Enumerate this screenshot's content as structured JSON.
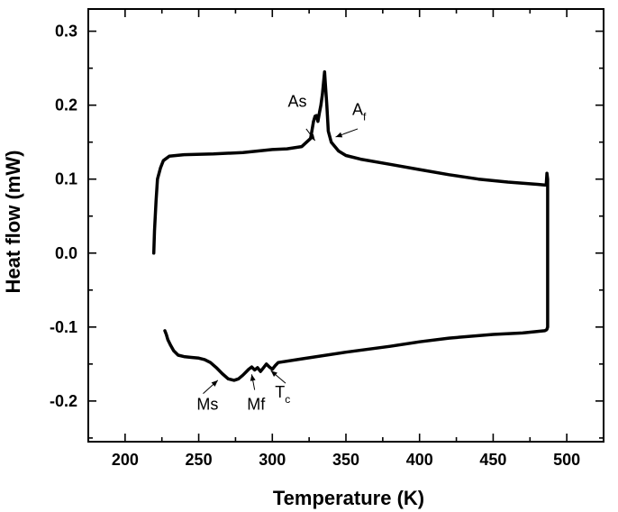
{
  "chart_data": {
    "type": "line",
    "title": "",
    "xlabel": "Temperature (K)",
    "ylabel": "Heat flow (mW)",
    "xlim": [
      175,
      525
    ],
    "ylim": [
      -0.255,
      0.33
    ],
    "x_ticks": [
      200,
      250,
      300,
      350,
      400,
      450,
      500
    ],
    "y_ticks": [
      -0.2,
      -0.1,
      0.0,
      0.1,
      0.2,
      0.3
    ],
    "y_tick_labels": [
      "-0.2",
      "-0.1",
      "0.0",
      "0.1",
      "0.2",
      "0.3"
    ],
    "grid": false,
    "series": [
      {
        "x": [
          219.5,
          220,
          221,
          222,
          224,
          226,
          230,
          240,
          260,
          280,
          300,
          310,
          320,
          326,
          328,
          329,
          330,
          331,
          332,
          333,
          334,
          335,
          335.5,
          336,
          337,
          338,
          340,
          345,
          350,
          360,
          380,
          400,
          420,
          440,
          460,
          480,
          485,
          486,
          486.5,
          487,
          487,
          487,
          486.5,
          486,
          485,
          470,
          450,
          420,
          400,
          380,
          350,
          320,
          304,
          302,
          300,
          298,
          296,
          294,
          292,
          290,
          288,
          286,
          284,
          282,
          280,
          277,
          274,
          270,
          266,
          262,
          258,
          254,
          250,
          245,
          240,
          236,
          233,
          231,
          229,
          228,
          227
        ],
        "y": [
          0.0,
          0.03,
          0.07,
          0.1,
          0.115,
          0.125,
          0.131,
          0.133,
          0.134,
          0.136,
          0.14,
          0.141,
          0.144,
          0.155,
          0.178,
          0.185,
          0.186,
          0.178,
          0.19,
          0.2,
          0.215,
          0.235,
          0.245,
          0.23,
          0.2,
          0.165,
          0.15,
          0.138,
          0.132,
          0.127,
          0.12,
          0.113,
          0.106,
          0.1,
          0.096,
          0.093,
          0.092,
          0.092,
          0.108,
          0.1,
          0.0,
          -0.1,
          -0.103,
          -0.104,
          -0.105,
          -0.108,
          -0.11,
          -0.115,
          -0.12,
          -0.126,
          -0.134,
          -0.143,
          -0.148,
          -0.152,
          -0.157,
          -0.154,
          -0.15,
          -0.155,
          -0.16,
          -0.155,
          -0.158,
          -0.154,
          -0.157,
          -0.161,
          -0.165,
          -0.17,
          -0.172,
          -0.17,
          -0.163,
          -0.155,
          -0.148,
          -0.144,
          -0.142,
          -0.141,
          -0.14,
          -0.138,
          -0.132,
          -0.125,
          -0.117,
          -0.11,
          -0.105
        ]
      }
    ],
    "annotations": [
      {
        "text": "As",
        "sub": "",
        "x": 317,
        "y": 0.198,
        "arrow_from": [
          323,
          0.168
        ],
        "arrow_to": [
          329,
          0.152
        ]
      },
      {
        "text": "A",
        "sub": "f",
        "x": 359,
        "y": 0.187,
        "arrow_from": [
          358,
          0.168
        ],
        "arrow_to": [
          343,
          0.157
        ]
      },
      {
        "text": "Ms",
        "sub": "",
        "x": 256,
        "y": -0.212,
        "arrow_from": [
          253,
          -0.19
        ],
        "arrow_to": [
          263,
          -0.172
        ]
      },
      {
        "text": "Mf",
        "sub": "",
        "x": 289,
        "y": -0.212,
        "arrow_from": [
          288,
          -0.185
        ],
        "arrow_to": [
          286,
          -0.164
        ]
      },
      {
        "text": "T",
        "sub": "c",
        "x": 307,
        "y": -0.195,
        "arrow_from": [
          309,
          -0.176
        ],
        "arrow_to": [
          299,
          -0.159
        ]
      }
    ]
  }
}
